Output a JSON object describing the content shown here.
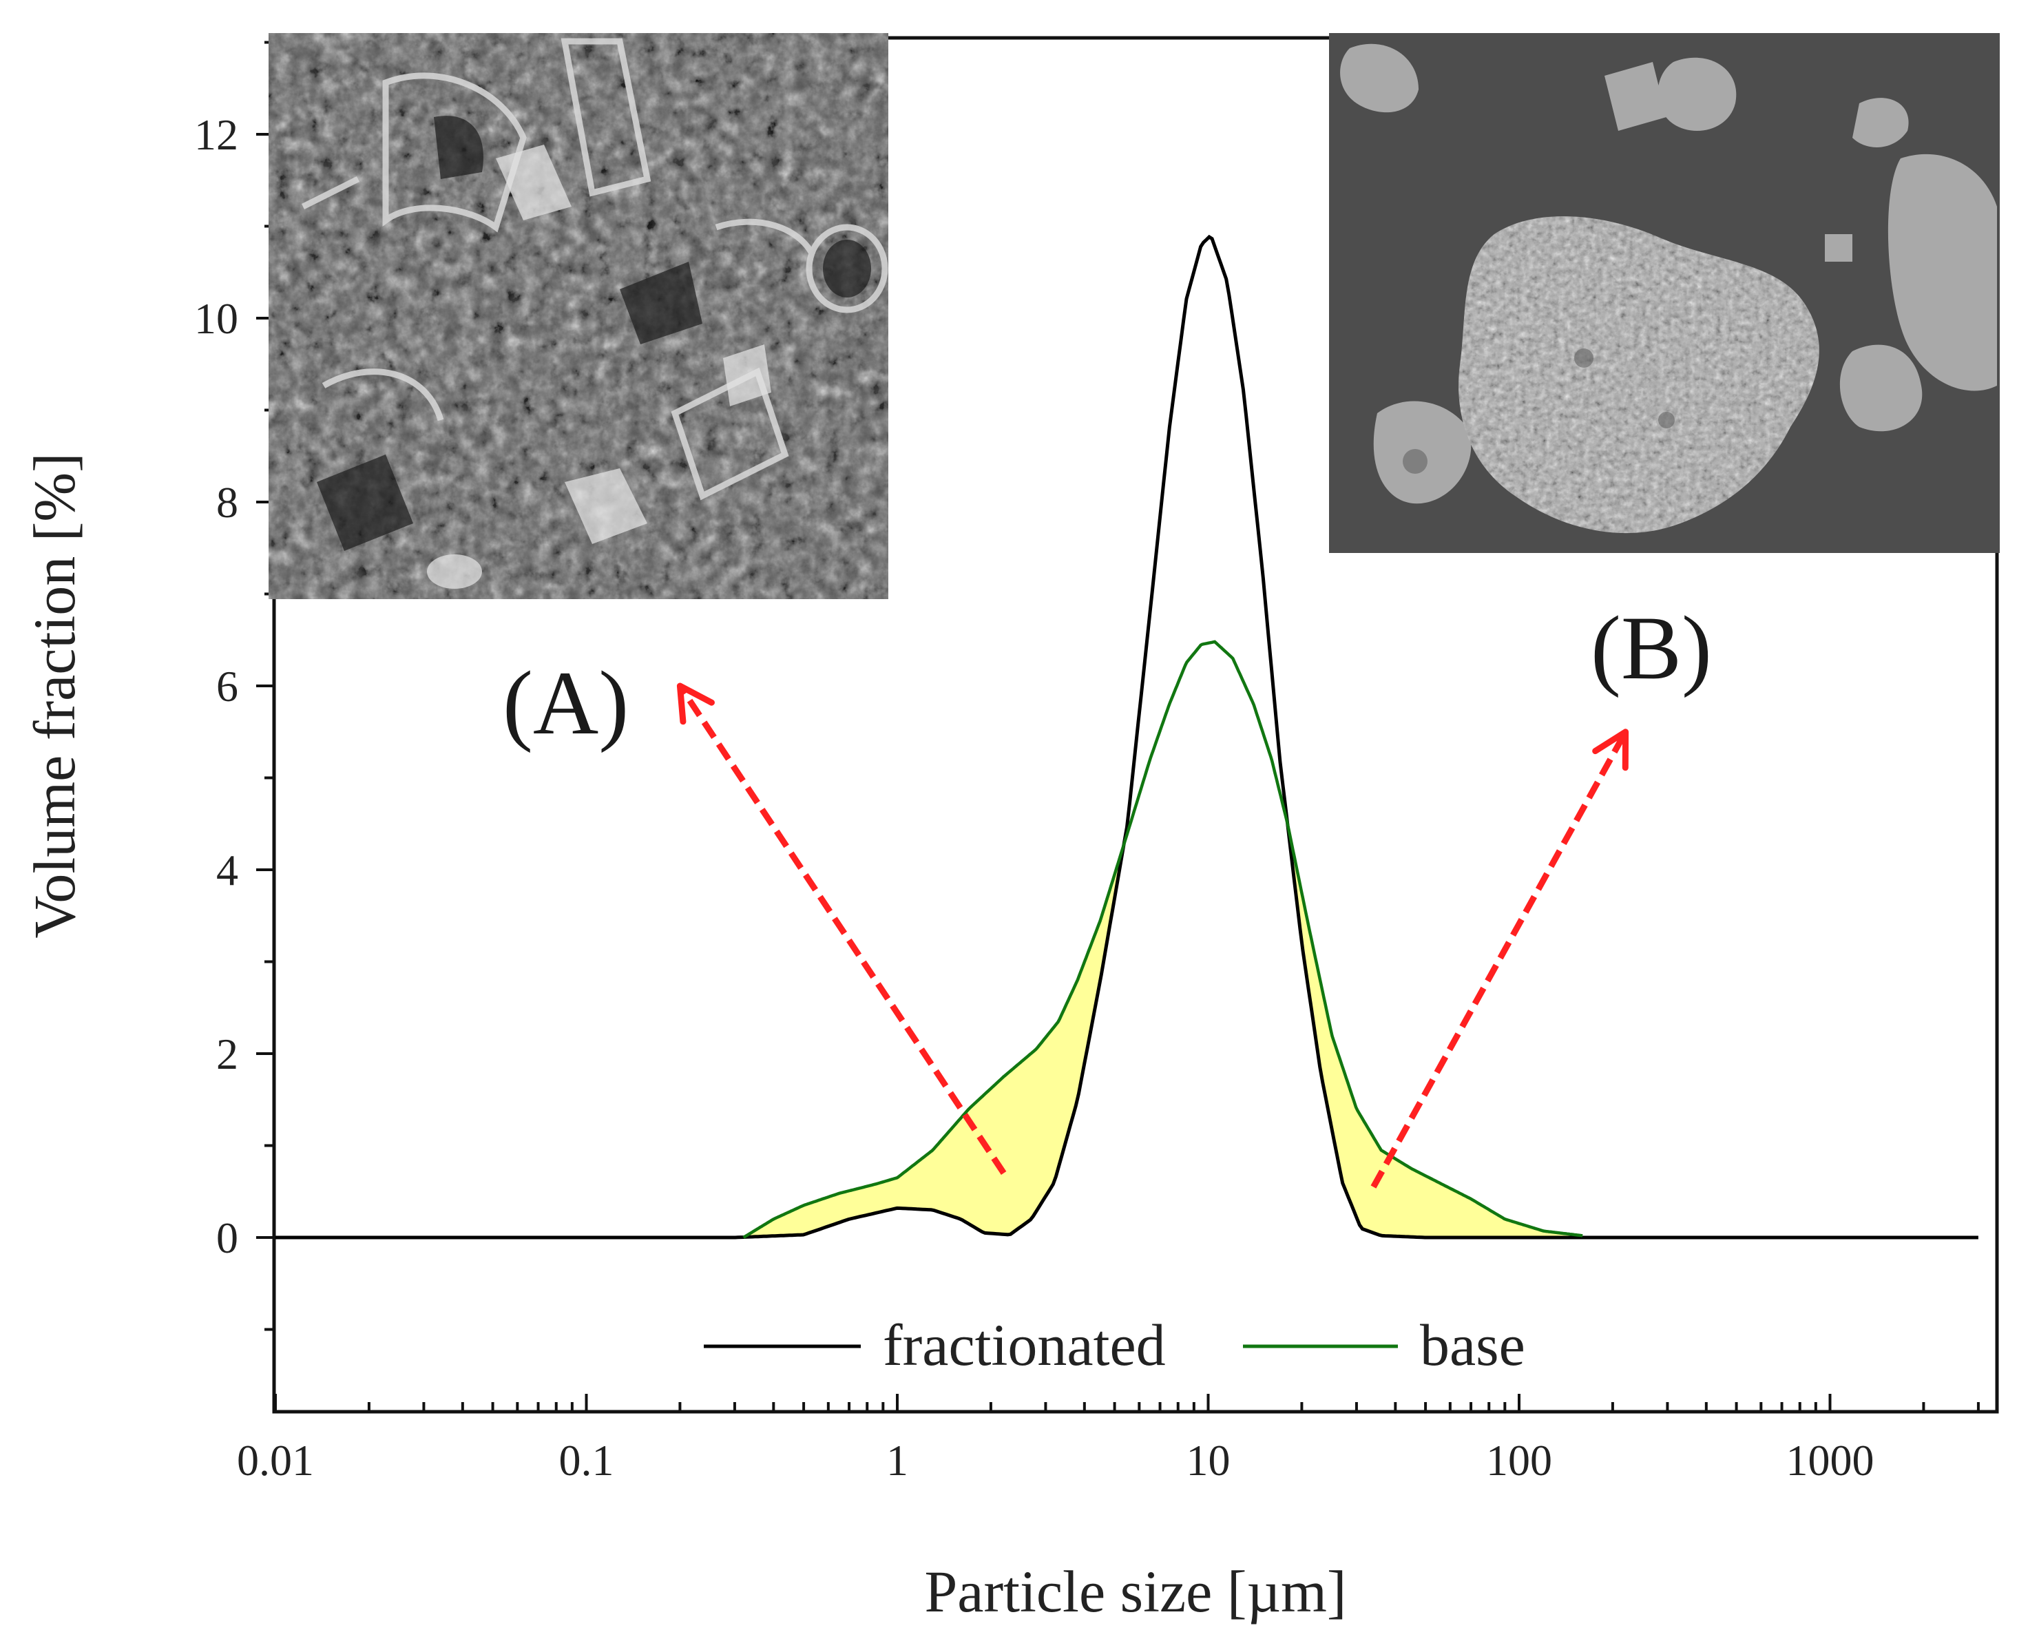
{
  "chart_data": {
    "type": "line",
    "xlabel": "Particle size [µm]",
    "ylabel": "Volume fraction [%]",
    "xscale": "log",
    "xlim": [
      0.01,
      3000
    ],
    "ylim": [
      -1.8,
      13
    ],
    "grid": false,
    "legend_position": "bottom-center",
    "x_ticks": [
      {
        "value": 0.01,
        "label": "0.01"
      },
      {
        "value": 0.1,
        "label": "0.1"
      },
      {
        "value": 1,
        "label": "1"
      },
      {
        "value": 10,
        "label": "10"
      },
      {
        "value": 100,
        "label": "100"
      },
      {
        "value": 1000,
        "label": "1000"
      }
    ],
    "y_ticks": [
      {
        "value": 0,
        "label": "0"
      },
      {
        "value": 2,
        "label": "2"
      },
      {
        "value": 4,
        "label": "4"
      },
      {
        "value": 6,
        "label": "6"
      },
      {
        "value": 8,
        "label": "8"
      },
      {
        "value": 10,
        "label": "10"
      },
      {
        "value": 12,
        "label": "12"
      }
    ],
    "series": [
      {
        "name": "fractionated",
        "color": "#000000",
        "points": [
          [
            0.01,
            0
          ],
          [
            0.3,
            0
          ],
          [
            0.5,
            0.03
          ],
          [
            0.7,
            0.2
          ],
          [
            1.0,
            0.32
          ],
          [
            1.3,
            0.3
          ],
          [
            1.6,
            0.2
          ],
          [
            1.9,
            0.05
          ],
          [
            2.3,
            0.03
          ],
          [
            2.7,
            0.2
          ],
          [
            3.2,
            0.6
          ],
          [
            3.8,
            1.5
          ],
          [
            4.5,
            2.8
          ],
          [
            5.5,
            4.5
          ],
          [
            6.5,
            6.8
          ],
          [
            7.5,
            8.8
          ],
          [
            8.5,
            10.2
          ],
          [
            9.5,
            10.8
          ],
          [
            10.2,
            10.9
          ],
          [
            11.5,
            10.4
          ],
          [
            13,
            9.2
          ],
          [
            15,
            7.2
          ],
          [
            17,
            5.2
          ],
          [
            20,
            3.2
          ],
          [
            23,
            1.8
          ],
          [
            27,
            0.6
          ],
          [
            31,
            0.1
          ],
          [
            36,
            0.02
          ],
          [
            50,
            0
          ],
          [
            3000,
            0
          ]
        ]
      },
      {
        "name": "base",
        "color": "#117711",
        "points": [
          [
            0.32,
            0
          ],
          [
            0.4,
            0.2
          ],
          [
            0.5,
            0.35
          ],
          [
            0.65,
            0.48
          ],
          [
            0.85,
            0.58
          ],
          [
            1.0,
            0.65
          ],
          [
            1.3,
            0.95
          ],
          [
            1.7,
            1.4
          ],
          [
            2.2,
            1.75
          ],
          [
            2.8,
            2.05
          ],
          [
            3.3,
            2.35
          ],
          [
            3.8,
            2.8
          ],
          [
            4.5,
            3.45
          ],
          [
            5.5,
            4.4
          ],
          [
            6.5,
            5.2
          ],
          [
            7.5,
            5.8
          ],
          [
            8.5,
            6.25
          ],
          [
            9.5,
            6.45
          ],
          [
            10.5,
            6.48
          ],
          [
            12,
            6.3
          ],
          [
            14,
            5.8
          ],
          [
            16,
            5.2
          ],
          [
            18,
            4.5
          ],
          [
            21,
            3.4
          ],
          [
            25,
            2.2
          ],
          [
            30,
            1.4
          ],
          [
            36,
            0.95
          ],
          [
            45,
            0.75
          ],
          [
            55,
            0.6
          ],
          [
            70,
            0.42
          ],
          [
            90,
            0.2
          ],
          [
            120,
            0.07
          ],
          [
            160,
            0.02
          ]
        ]
      }
    ],
    "annotations": [
      {
        "text": "(A)",
        "arrow_from": [
          2.2,
          0.7
        ],
        "arrow_to": [
          0.2,
          6.0
        ],
        "color": "#ff2020"
      },
      {
        "text": "(B)",
        "arrow_from": [
          34,
          0.55
        ],
        "arrow_to": [
          220,
          5.5
        ],
        "color": "#ff2020"
      }
    ],
    "fill_color": "#ffff99"
  },
  "insets": [
    {
      "label": "SEM micrograph A"
    },
    {
      "label": "SEM micrograph B"
    }
  ]
}
